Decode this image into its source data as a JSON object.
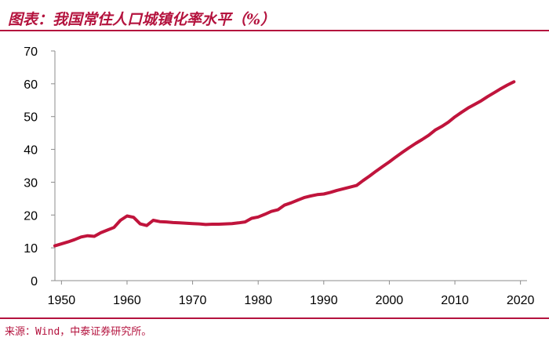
{
  "title": "图表：我国常住人口城镇化率水平（%）",
  "source": "来源：Wind，中泰证券研究所。",
  "colors": {
    "accent": "#b4133e",
    "line": "#c0143c"
  },
  "chart_data": {
    "type": "line",
    "title": "",
    "xlabel": "",
    "ylabel": "",
    "xlim": [
      1949,
      2021
    ],
    "ylim": [
      0,
      70
    ],
    "x_ticks": [
      1950,
      1960,
      1970,
      1980,
      1990,
      2000,
      2010,
      2020
    ],
    "y_ticks": [
      0,
      10,
      20,
      30,
      40,
      50,
      60,
      70
    ],
    "grid": false,
    "legend": "none",
    "series": [
      {
        "x": [
          1949,
          1950,
          1951,
          1952,
          1953,
          1954,
          1955,
          1956,
          1957,
          1958,
          1959,
          1960,
          1961,
          1962,
          1963,
          1964,
          1965,
          1966,
          1967,
          1968,
          1969,
          1970,
          1971,
          1972,
          1973,
          1974,
          1975,
          1976,
          1977,
          1978,
          1979,
          1980,
          1981,
          1982,
          1983,
          1984,
          1985,
          1986,
          1987,
          1988,
          1989,
          1990,
          1991,
          1992,
          1993,
          1994,
          1995,
          1996,
          1997,
          1998,
          1999,
          2000,
          2001,
          2002,
          2003,
          2004,
          2005,
          2006,
          2007,
          2008,
          2009,
          2010,
          2011,
          2012,
          2013,
          2014,
          2015,
          2016,
          2017,
          2018,
          2019
        ],
        "values": [
          10.6,
          11.2,
          11.8,
          12.5,
          13.3,
          13.7,
          13.5,
          14.6,
          15.4,
          16.2,
          18.4,
          19.7,
          19.3,
          17.3,
          16.8,
          18.4,
          18.0,
          17.9,
          17.7,
          17.6,
          17.5,
          17.4,
          17.3,
          17.1,
          17.2,
          17.2,
          17.3,
          17.4,
          17.6,
          17.9,
          19.0,
          19.4,
          20.2,
          21.1,
          21.6,
          23.0,
          23.7,
          24.5,
          25.3,
          25.8,
          26.2,
          26.4,
          26.9,
          27.5,
          28.0,
          28.5,
          29.0,
          30.5,
          31.9,
          33.4,
          34.8,
          36.2,
          37.7,
          39.1,
          40.5,
          41.8,
          43.0,
          44.3,
          45.9,
          47.0,
          48.3,
          49.9,
          51.3,
          52.6,
          53.7,
          54.8,
          56.1,
          57.3,
          58.5,
          59.6,
          60.6
        ]
      }
    ]
  }
}
